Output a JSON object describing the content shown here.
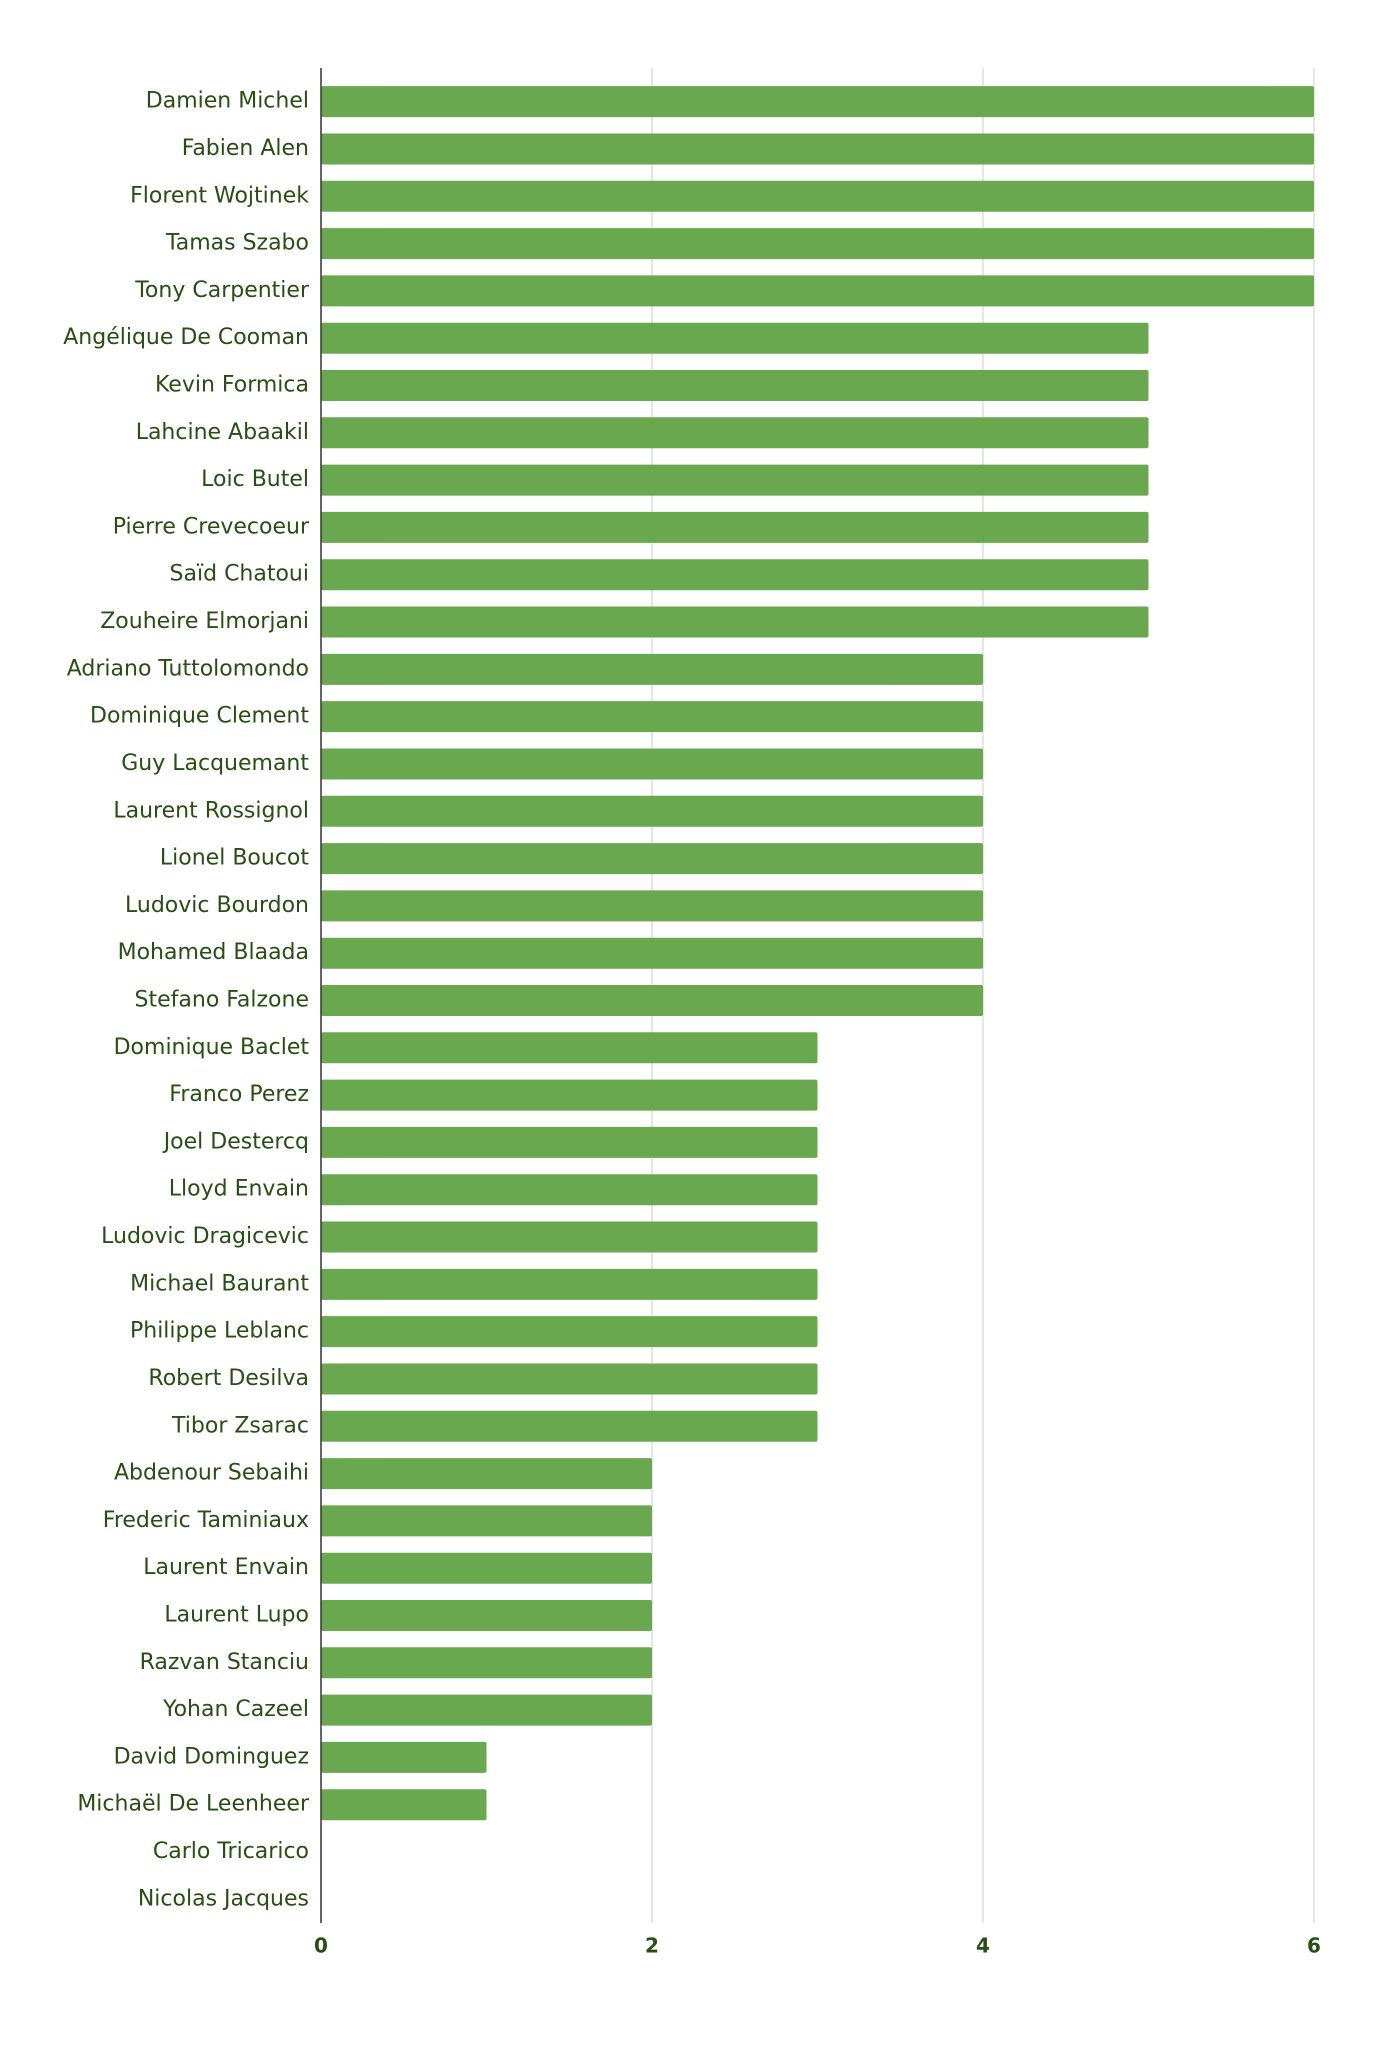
{
  "chart_data": {
    "type": "bar",
    "orientation": "horizontal",
    "categories": [
      "Damien Michel",
      "Fabien Alen",
      "Florent Wojtinek",
      "Tamas Szabo",
      "Tony Carpentier",
      "Angélique De Cooman",
      "Kevin Formica",
      "Lahcine Abaakil",
      "Loic Butel",
      "Pierre Crevecoeur",
      "Saïd Chatoui",
      "Zouheire Elmorjani",
      "Adriano Tuttolomondo",
      "Dominique Clement",
      "Guy Lacquemant",
      "Laurent Rossignol",
      "Lionel Boucot",
      "Ludovic Bourdon",
      "Mohamed Blaada",
      "Stefano Falzone",
      "Dominique Baclet",
      "Franco Perez",
      "Joel Destercq",
      "Lloyd Envain",
      "Ludovic Dragicevic",
      "Michael Baurant",
      "Philippe Leblanc",
      "Robert Desilva",
      "Tibor Zsarac",
      "Abdenour Sebaihi",
      "Frederic Taminiaux",
      "Laurent Envain",
      "Laurent Lupo",
      "Razvan Stanciu",
      "Yohan Cazeel",
      "David Dominguez",
      "Michaël De Leenheer",
      "Carlo Tricarico",
      "Nicolas Jacques"
    ],
    "values": [
      6,
      6,
      6,
      6,
      6,
      5,
      5,
      5,
      5,
      5,
      5,
      5,
      4,
      4,
      4,
      4,
      4,
      4,
      4,
      4,
      3,
      3,
      3,
      3,
      3,
      3,
      3,
      3,
      3,
      2,
      2,
      2,
      2,
      2,
      2,
      1,
      1,
      0,
      0
    ],
    "color": "#6aa84f",
    "xlim": [
      0,
      6
    ],
    "xticks": [
      0,
      2,
      4,
      6
    ],
    "grid": true
  }
}
